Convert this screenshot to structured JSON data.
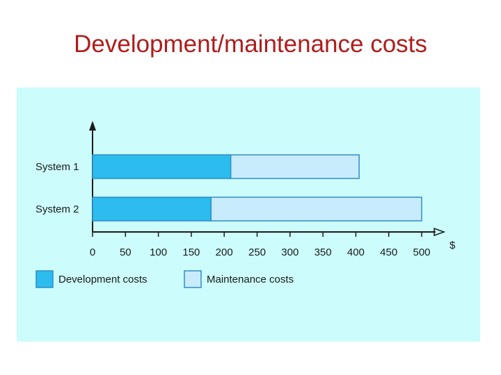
{
  "slide": {
    "title": "Development/maintenance costs"
  },
  "colors": {
    "title": "#b01c1c",
    "panel": "#ccfcfc",
    "development": "#2cbcee",
    "maintenance": "#c8ecfc",
    "bar_stroke": "#2f8cc8",
    "axis": "#1a1a1a"
  },
  "chart_data": {
    "type": "bar",
    "orientation": "horizontal",
    "stacked": true,
    "categories": [
      "System 1",
      "System 2"
    ],
    "series": [
      {
        "name": "Development costs",
        "values": [
          210,
          180
        ]
      },
      {
        "name": "Maintenance costs",
        "values": [
          195,
          320
        ]
      }
    ],
    "xlabel": "$",
    "xlim": [
      0,
      500
    ],
    "xticks": [
      "0",
      "50",
      "100",
      "150",
      "200",
      "250",
      "300",
      "350",
      "400",
      "450",
      "500"
    ],
    "legend": "bottom-left",
    "grid": false
  }
}
